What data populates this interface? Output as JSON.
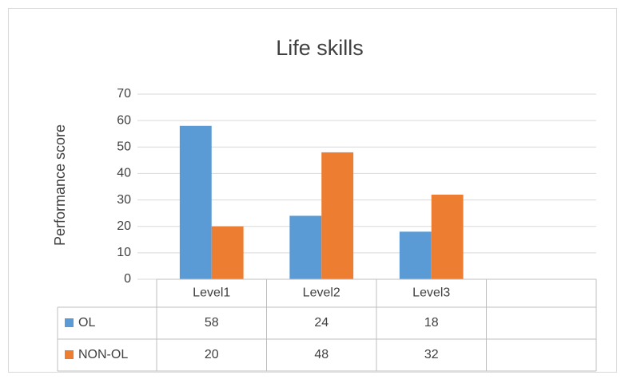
{
  "chart_data": {
    "type": "bar",
    "title": "Life skills",
    "y_label": "Performance score",
    "categories": [
      "Level1",
      "Level2",
      "Level3",
      null
    ],
    "series": [
      {
        "name": "OL",
        "color": "#5b9bd5",
        "values": [
          58,
          24,
          18,
          null
        ]
      },
      {
        "name": "NON-OL",
        "color": "#ed7d31",
        "values": [
          20,
          48,
          32,
          null
        ]
      }
    ],
    "ylim": [
      0,
      70
    ],
    "yticks": [
      0,
      10,
      20,
      30,
      40,
      50,
      60,
      70
    ],
    "grid": true,
    "data_table": true
  }
}
